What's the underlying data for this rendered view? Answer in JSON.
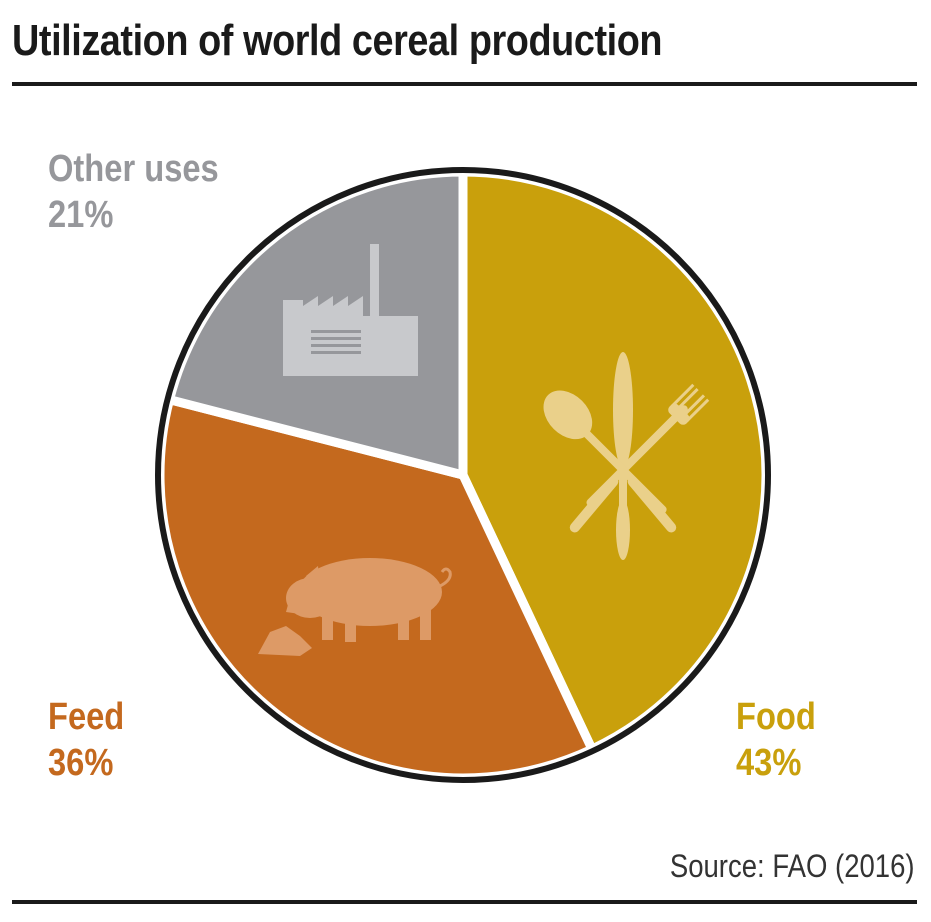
{
  "title": "Utilization of world cereal production",
  "source": "Source: FAO (2016)",
  "colors": {
    "food": "#c9a00c",
    "feed": "#c4691e",
    "other": "#96979b",
    "outline": "#1a1a1a",
    "gap": "#ffffff"
  },
  "icons": {
    "food": "cutlery-icon",
    "feed": "pig-icon",
    "other": "factory-icon"
  },
  "chart_data": {
    "type": "pie",
    "title": "Utilization of world cereal production",
    "slices": [
      {
        "name": "Food",
        "value": 43,
        "value_label": "43%",
        "color": "#c9a00c"
      },
      {
        "name": "Feed",
        "value": 36,
        "value_label": "36%",
        "color": "#c4691e"
      },
      {
        "name": "Other uses",
        "value": 21,
        "value_label": "21%",
        "color": "#96979b"
      }
    ],
    "start": "12 o'clock",
    "direction": "clockwise",
    "legend": "none"
  }
}
